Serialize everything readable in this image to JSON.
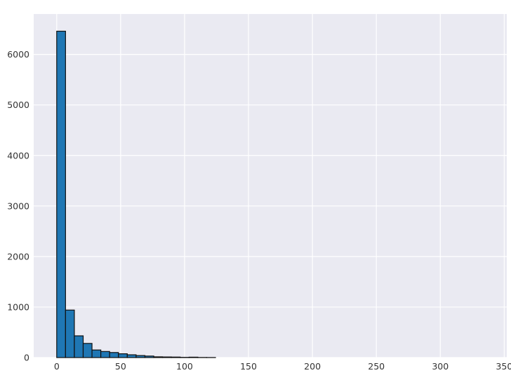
{
  "chart_data": {
    "type": "bar",
    "title": "",
    "xlabel": "",
    "ylabel": "",
    "xlim": [
      -18,
      352
    ],
    "ylim": [
      0,
      6800
    ],
    "xticks": [
      0,
      50,
      100,
      150,
      200,
      250,
      300,
      350
    ],
    "yticks": [
      0,
      1000,
      2000,
      3000,
      4000,
      5000,
      6000
    ],
    "grid": true,
    "legend": "none",
    "bar_color": "#1f77b4",
    "bar_edge_color": "#111111",
    "bin_width": 6.9,
    "bins": [
      {
        "x0": 0.0,
        "value": 6460
      },
      {
        "x0": 6.9,
        "value": 940
      },
      {
        "x0": 13.8,
        "value": 430
      },
      {
        "x0": 20.7,
        "value": 280
      },
      {
        "x0": 27.6,
        "value": 150
      },
      {
        "x0": 34.5,
        "value": 120
      },
      {
        "x0": 41.4,
        "value": 100
      },
      {
        "x0": 48.3,
        "value": 75
      },
      {
        "x0": 55.2,
        "value": 55
      },
      {
        "x0": 62.1,
        "value": 40
      },
      {
        "x0": 69.0,
        "value": 30
      },
      {
        "x0": 75.9,
        "value": 15
      },
      {
        "x0": 82.8,
        "value": 12
      },
      {
        "x0": 89.7,
        "value": 10
      },
      {
        "x0": 96.6,
        "value": 4
      },
      {
        "x0": 103.5,
        "value": 8
      },
      {
        "x0": 110.4,
        "value": 2
      },
      {
        "x0": 117.3,
        "value": 1
      }
    ]
  }
}
